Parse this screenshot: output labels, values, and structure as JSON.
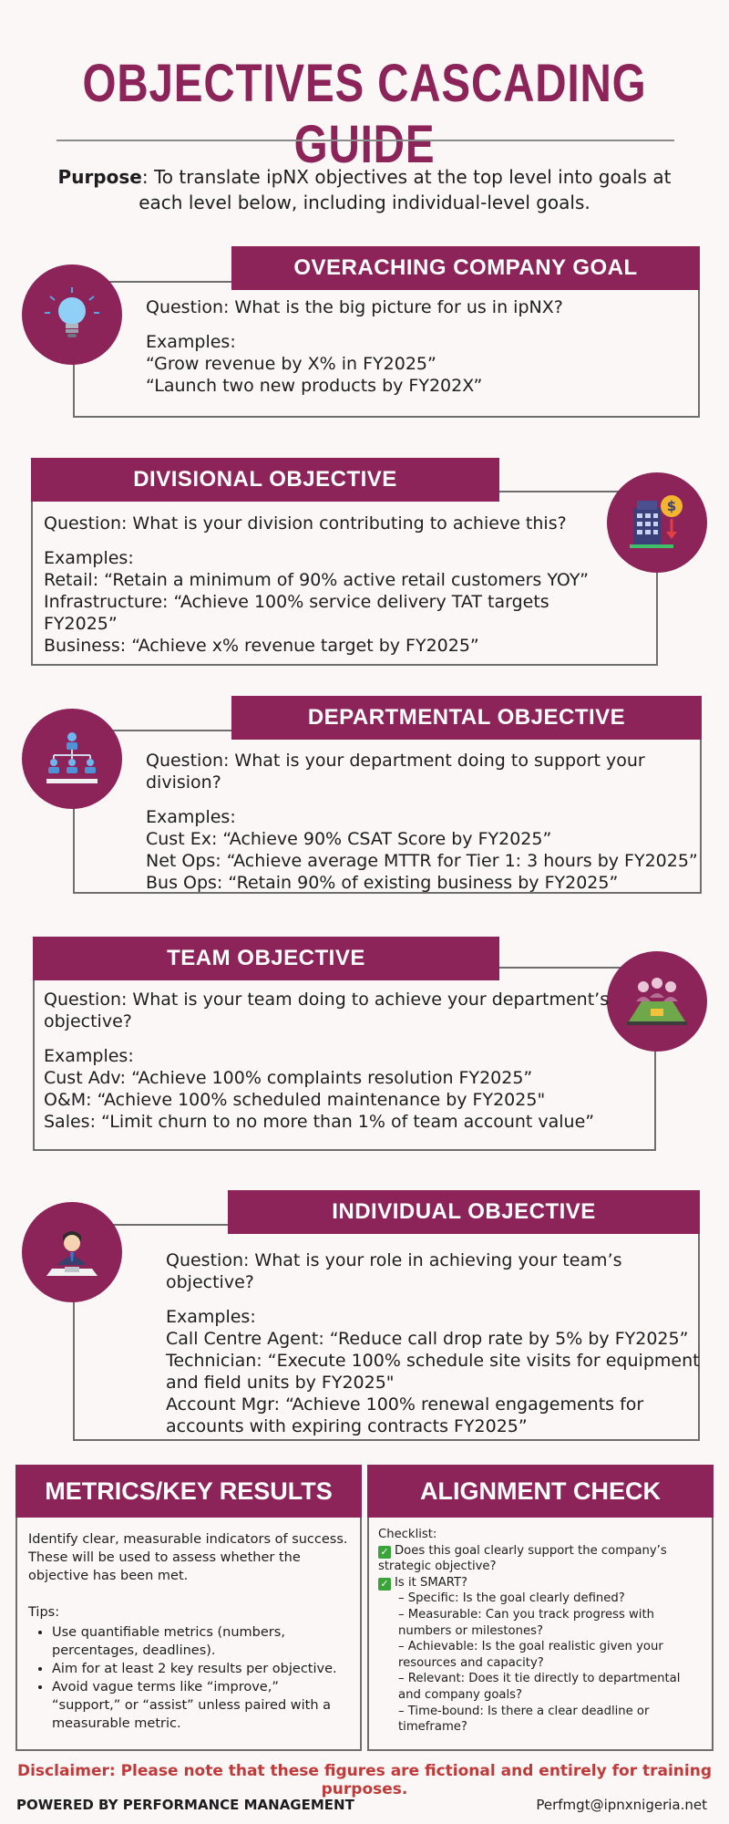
{
  "title": "OBJECTIVES CASCADING  GUIDE",
  "purpose": {
    "label": "Purpose",
    "text": ": To translate ipNX objectives at the top level into goals at each level below, including individual-level goals."
  },
  "sections": [
    {
      "banner": "OVERACHING COMPANY GOAL",
      "question": "Question: What is the big picture for us in ipNX?",
      "examples_label": "Examples:",
      "examples": [
        "“Grow revenue by X% in FY2025”",
        "“Launch two new products by FY202X”"
      ],
      "icon": "lightbulb-icon"
    },
    {
      "banner": "DIVISIONAL OBJECTIVE",
      "question": "Question: What is your division contributing to achieve this?",
      "examples_label": "Examples:",
      "examples": [
        "Retail: “Retain a minimum of 90% active retail customers YOY”",
        "Infrastructure: “Achieve 100% service delivery TAT targets  FY2025”",
        "Business: “Achieve x% revenue target by FY2025”"
      ],
      "icon": "building-dollar-icon"
    },
    {
      "banner": "DEPARTMENTAL OBJECTIVE",
      "question": "Question: What is your department doing to support your division?",
      "examples_label": "Examples:",
      "examples": [
        "Cust Ex: “Achieve 90% CSAT Score by FY2025”",
        "Net Ops: “Achieve average MTTR for Tier 1: 3 hours by FY2025”",
        "Bus Ops: “Retain 90% of existing business by FY2025”"
      ],
      "icon": "org-chart-icon"
    },
    {
      "banner": "TEAM OBJECTIVE",
      "question": "Question: What is your team doing to achieve your department’s objective?",
      "examples_label": "Examples:",
      "examples": [
        "Cust Adv: “Achieve 100% complaints resolution FY2025”",
        "O&M: “Achieve 100% scheduled maintenance by FY2025\"",
        "Sales: “Limit churn to no more than 1% of team account value”"
      ],
      "icon": "team-meeting-icon"
    },
    {
      "banner": "INDIVIDUAL OBJECTIVE",
      "question": "Question: What is your role in achieving your team’s objective?",
      "examples_label": "Examples:",
      "examples": [
        "Call Centre Agent: “Reduce call drop rate by 5% by FY2025”",
        "Technician: “Execute 100% schedule site visits for equipment and field units by FY2025\"",
        "Account Mgr: “Achieve 100% renewal engagements for accounts with expiring contracts FY2025”"
      ],
      "icon": "businessman-icon"
    }
  ],
  "metrics": {
    "title": "METRICS/KEY RESULTS",
    "intro": "Identify clear, measurable indicators of success. These will be used to assess whether the objective has been met.",
    "tips_label": "Tips:",
    "tips": [
      "Use quantifiable metrics (numbers, percentages, deadlines).",
      "Aim for at least 2 key results per objective.",
      "Avoid vague terms like “improve,” “support,” or “assist” unless paired with a measurable metric."
    ]
  },
  "alignment": {
    "title": "ALIGNMENT CHECK",
    "checklist_label": "Checklist:",
    "item1": "Does this goal clearly support the company’s strategic objective?",
    "item2": "Is it SMART?",
    "smart": [
      "– Specific: Is the goal clearly defined?",
      "– Measurable: Can you track progress with numbers or milestones?",
      "– Achievable: Is the goal realistic given your resources and capacity?",
      "– Relevant: Does it tie directly to departmental and company goals?",
      "– Time-bound: Is there a clear deadline or timeframe?"
    ]
  },
  "disclaimer": "Disclaimer: Please note that these figures are fictional and entirely for training purposes.",
  "footer": {
    "left": "POWERED BY PERFORMANCE MANAGEMENT",
    "right": "Perfmgt@ipnxnigeria.net"
  },
  "colors": {
    "accent": "#8c2459",
    "background": "#fbf7f6",
    "disclaimer": "#c03a3a"
  }
}
